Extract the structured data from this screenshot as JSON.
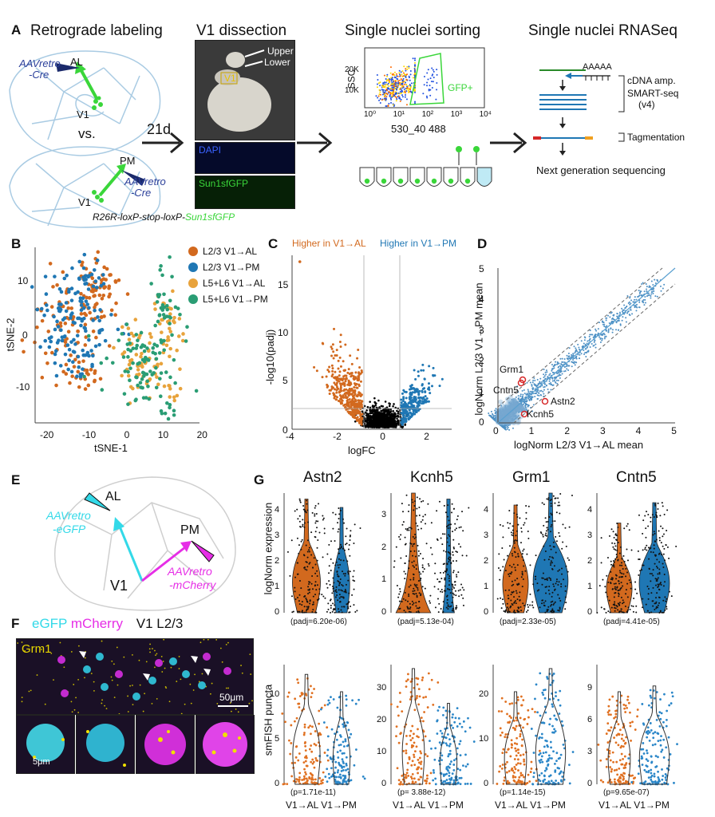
{
  "panel_labels": {
    "A": "A",
    "B": "B",
    "C": "C",
    "D": "D",
    "E": "E",
    "F": "F",
    "G": "G"
  },
  "panelA": {
    "retro_title": "Retrograde labeling",
    "dissect_title": "V1 dissection",
    "sort_title": "Single nuclei sorting",
    "rnaseq_title": "Single nuclei RNASeq",
    "al": "AL",
    "pm": "PM",
    "v1": "V1",
    "vs": "vs.",
    "virus_top_1": "AAVretro",
    "virus_top_2": "-Cre",
    "virus_bot_1": "AAVretro",
    "virus_bot_2": "-Cre",
    "days": "21d",
    "upper": "Upper",
    "lower": "Lower",
    "v1_slice": "V1",
    "dapi": "DAPI",
    "sun1": "Sun1sfGFP",
    "genotype_prefix": "R26R-loxP-stop-loxP-",
    "genotype_suffix": "Sun1sfGFP",
    "ssc": "SSC",
    "tick_20k": "20K",
    "tick_10k": "10K",
    "x_ticks": [
      "10⁰",
      "10¹",
      "10²",
      "10³",
      "10⁴"
    ],
    "facs_x": "530_40 488",
    "gfp_gate": "GFP+",
    "polyA": "AAAAA",
    "tttt": "TTTTT",
    "cdna": "cDNA amp.",
    "smart": "SMART-seq",
    "v4": "(v4)",
    "tagment": "Tagmentation",
    "ngs": "Next generation sequencing"
  },
  "panelB": {
    "xlabel": "tSNE-1",
    "ylabel": "tSNE-2",
    "xticks": [
      "-20",
      "-10",
      "0",
      "10",
      "20"
    ],
    "yticks": [
      "10",
      "0",
      "-10"
    ],
    "legend": [
      {
        "label": "L2/3 V1→AL",
        "color": "#d2691e"
      },
      {
        "label": "L2/3 V1→PM",
        "color": "#1f77b4"
      },
      {
        "label": "L5+L6 V1→AL",
        "color": "#e8a33c"
      },
      {
        "label": "L5+L6 V1→PM",
        "color": "#2a9d74"
      }
    ]
  },
  "panelC": {
    "higher_al": "Higher in V1→AL",
    "higher_pm": "Higher in V1→PM",
    "xlabel": "logFC",
    "ylabel": "-log10(padj)",
    "xticks": [
      "-4",
      "-2",
      "0",
      "2"
    ],
    "yticks": [
      "0",
      "5",
      "10",
      "15"
    ]
  },
  "panelD": {
    "xlabel": "logNorm L2/3 V1→AL mean",
    "ylabel": "logNorm L2/3 V1→PM mean",
    "ticks": [
      "0",
      "1",
      "2",
      "3",
      "4",
      "5"
    ],
    "genes": [
      "Grm1",
      "Cntn5",
      "Astn2",
      "Kcnh5"
    ]
  },
  "panelE": {
    "al": "AL",
    "pm": "PM",
    "v1": "V1",
    "egfp_1": "AAVretro",
    "egfp_2": "-eGFP",
    "mch_1": "AAVretro",
    "mch_2": "-mCherry"
  },
  "panelF": {
    "egfp": "eGFP",
    "mcherry": "mCherry",
    "v1l23": "V1 L2/3",
    "gene": "Grm1",
    "scale_big": "50μm",
    "scale_small": "5μm"
  },
  "panelG": {
    "genes": [
      "Astn2",
      "Kcnh5",
      "Grm1",
      "Cntn5"
    ],
    "ylabel_top": "logNorm expression",
    "ylabel_bottom": "smFISH puncta",
    "padj": [
      "(padj=6.20e-06)",
      "(padj=5.13e-04)",
      "(padj=2.33e-05)",
      "(padj=4.41e-05)"
    ],
    "pvals": [
      "(p=1.71e-11)",
      "(p= 3.88e-12)",
      "(p=1.14e-15)",
      "(p=9.65e-07)"
    ],
    "xcat": [
      "V1→AL",
      "V1→PM"
    ],
    "top_ticks": [
      [
        "0",
        "1",
        "2",
        "3",
        "4"
      ],
      [
        "0",
        "1",
        "2",
        "3"
      ],
      [
        "0",
        "1",
        "2",
        "3",
        "4"
      ],
      [
        "0",
        "1",
        "2",
        "3",
        "4"
      ]
    ],
    "bot_ticks": [
      [
        "0",
        "5",
        "10"
      ],
      [
        "0",
        "10",
        "20",
        "30"
      ],
      [
        "0",
        "10",
        "20"
      ],
      [
        "0",
        "3",
        "6",
        "9"
      ]
    ]
  },
  "chart_data": [
    {
      "type": "scatter",
      "panel": "B",
      "xlabel": "tSNE-1",
      "ylabel": "tSNE-2",
      "xlim": [
        -22,
        22
      ],
      "ylim": [
        -17,
        17
      ],
      "series": [
        {
          "name": "L2/3 V1→AL"
        },
        {
          "name": "L2/3 V1→PM"
        },
        {
          "name": "L5+L6 V1→AL"
        },
        {
          "name": "L5+L6 V1→PM"
        }
      ]
    },
    {
      "type": "scatter",
      "panel": "C",
      "xlabel": "logFC",
      "ylabel": "-log10(padj)",
      "xlim": [
        -4.6,
        3.6
      ],
      "ylim": [
        0,
        19
      ],
      "annotations": [
        "Higher in V1→AL",
        "Higher in V1→PM"
      ]
    },
    {
      "type": "scatter",
      "panel": "D",
      "xlabel": "logNorm L2/3 V1→AL mean",
      "ylabel": "logNorm L2/3 V1→PM mean",
      "xlim": [
        0,
        5
      ],
      "ylim": [
        0,
        5
      ],
      "highlighted": [
        {
          "gene": "Grm1",
          "x": 0.7,
          "y": 1.3
        },
        {
          "gene": "Cntn5",
          "x": 0.65,
          "y": 1.15
        },
        {
          "gene": "Astn2",
          "x": 1.35,
          "y": 0.6
        },
        {
          "gene": "Kcnh5",
          "x": 0.75,
          "y": 0.25
        }
      ]
    },
    {
      "type": "violin",
      "panel": "G-top",
      "categories": [
        "V1→AL",
        "V1→PM"
      ],
      "genes": [
        "Astn2",
        "Kcnh5",
        "Grm1",
        "Cntn5"
      ]
    },
    {
      "type": "violin",
      "panel": "G-bottom",
      "categories": [
        "V1→AL",
        "V1→PM"
      ],
      "genes": [
        "Astn2",
        "Kcnh5",
        "Grm1",
        "Cntn5"
      ]
    }
  ]
}
